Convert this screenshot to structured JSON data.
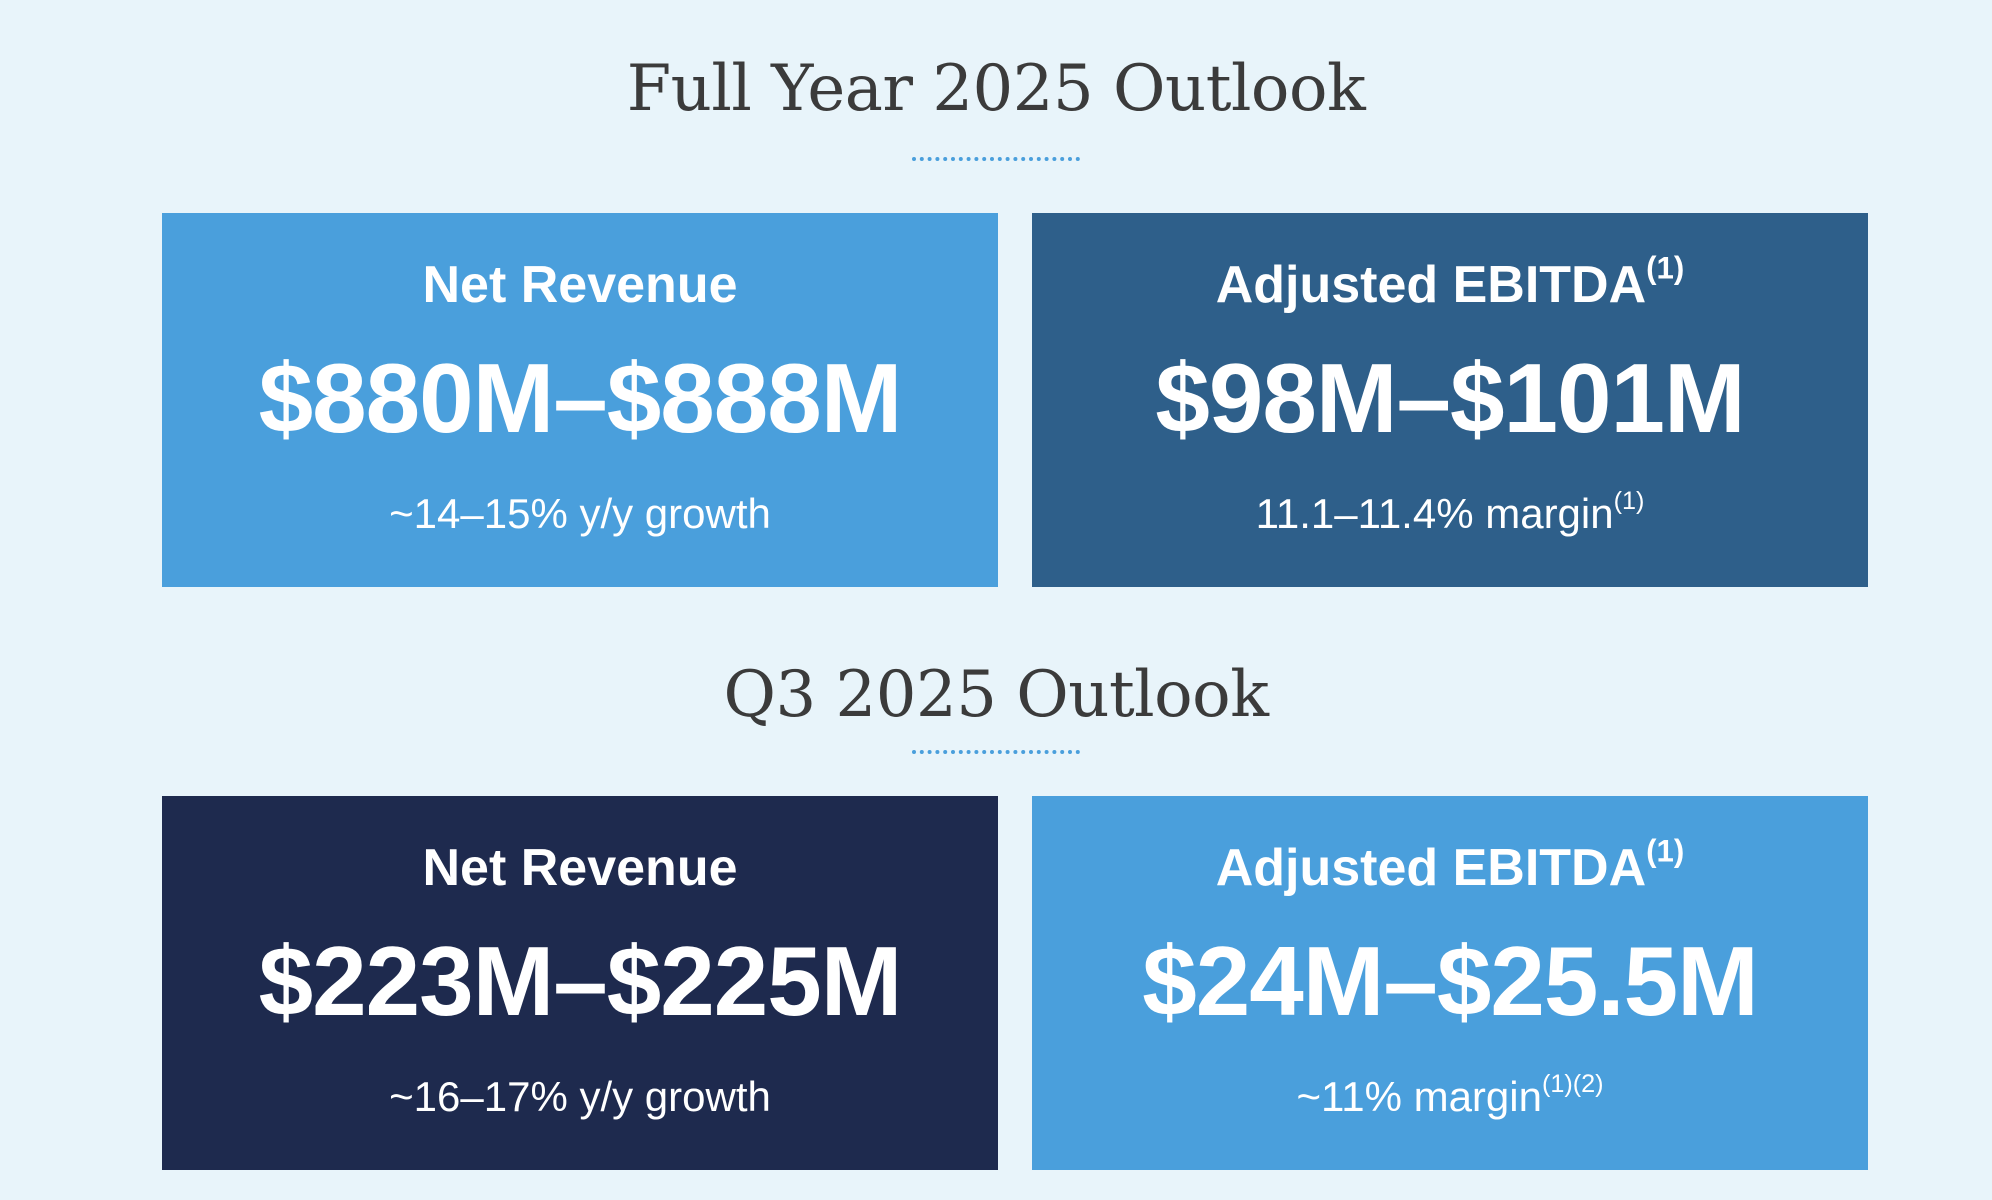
{
  "full_year": {
    "title": "Full Year 2025 Outlook",
    "net_revenue": {
      "label": "Net Revenue",
      "value": "$880M–$888M",
      "note": "~14–15% y/y growth",
      "color": "#4a9fdc"
    },
    "adjusted_ebitda": {
      "label": "Adjusted EBITDA",
      "label_sup": "(1)",
      "value": "$98M–$101M",
      "note": "11.1–11.4% margin",
      "note_sup": "(1)",
      "color": "#2e5f8a"
    }
  },
  "q3": {
    "title": "Q3 2025 Outlook",
    "net_revenue": {
      "label": "Net Revenue",
      "value": "$223M–$225M",
      "note": "~16–17% y/y growth",
      "color": "#1e2a4e"
    },
    "adjusted_ebitda": {
      "label": "Adjusted EBITDA",
      "label_sup": "(1)",
      "value": "$24M–$25.5M",
      "note": "~11% margin",
      "note_sup": "(1)(2)",
      "color": "#4a9fdc"
    }
  }
}
